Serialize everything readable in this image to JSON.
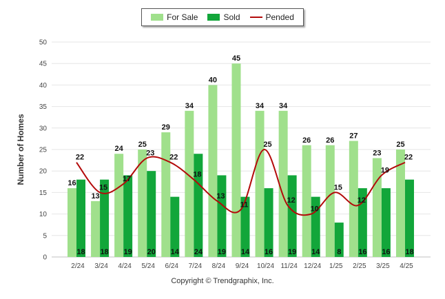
{
  "legend": {
    "for_sale": "For Sale",
    "sold": "Sold",
    "pended": "Pended"
  },
  "copyright": "Copyright © Trendgraphix, Inc.",
  "colors": {
    "for_sale": "#a0e08c",
    "sold": "#12a63a",
    "pended": "#b30a0a",
    "grid": "#e6e6e6"
  },
  "chart_data": {
    "type": "bar",
    "title": "",
    "xlabel": "",
    "ylabel": "Number of Homes",
    "ylim": [
      0,
      50
    ],
    "yticks": [
      0,
      5,
      10,
      15,
      20,
      25,
      30,
      35,
      40,
      45,
      50
    ],
    "grid": true,
    "legend_position": "top-center",
    "categories": [
      "2/24",
      "3/24",
      "4/24",
      "5/24",
      "6/24",
      "7/24",
      "8/24",
      "9/24",
      "10/24",
      "11/24",
      "12/24",
      "1/25",
      "2/25",
      "3/25",
      "4/25"
    ],
    "series": [
      {
        "name": "For Sale",
        "kind": "bar",
        "color": "#a0e08c",
        "values": [
          16,
          13,
          24,
          25,
          29,
          34,
          40,
          45,
          34,
          34,
          26,
          26,
          27,
          23,
          25
        ]
      },
      {
        "name": "Sold",
        "kind": "bar",
        "color": "#12a63a",
        "values": [
          18,
          18,
          19,
          20,
          14,
          24,
          19,
          14,
          16,
          19,
          14,
          8,
          16,
          16,
          18
        ]
      },
      {
        "name": "Pended",
        "kind": "line",
        "color": "#b30a0a",
        "values": [
          22,
          15,
          17,
          23,
          22,
          18,
          13,
          11,
          25,
          12,
          10,
          15,
          12,
          19,
          22
        ]
      }
    ]
  }
}
